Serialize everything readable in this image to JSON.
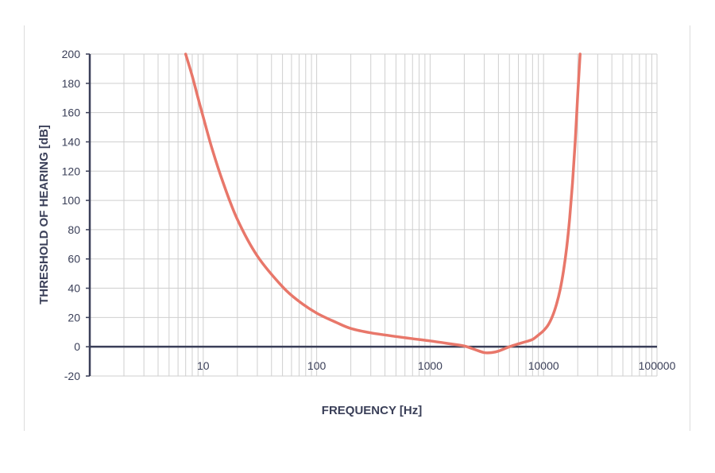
{
  "chart_data": {
    "type": "line",
    "xlabel": "FREQUENCY [Hz]",
    "ylabel": "THRESHOLD OF HEARING [dB]",
    "x_scale": "log",
    "xlim": [
      1,
      100000
    ],
    "ylim": [
      -20,
      200
    ],
    "x_ticks": [
      10,
      100,
      1000,
      10000,
      100000
    ],
    "x_tick_labels": [
      "10",
      "100",
      "1000",
      "10000",
      "100000"
    ],
    "y_ticks": [
      -20,
      0,
      20,
      40,
      60,
      80,
      100,
      120,
      140,
      160,
      180,
      200
    ],
    "y_tick_labels": [
      "-20",
      "0",
      "20",
      "40",
      "60",
      "80",
      "100",
      "120",
      "140",
      "160",
      "180",
      "200"
    ],
    "grid": true,
    "colors": {
      "curve": "#e8776a",
      "axis": "#3a3f58",
      "grid": "#cfcfcf"
    },
    "series": [
      {
        "x": [
          7,
          8,
          9,
          10,
          12,
          15,
          20,
          30,
          50,
          70,
          100,
          150,
          200,
          300,
          500,
          700,
          1000,
          1500,
          2000,
          2500,
          3000,
          3500,
          4000,
          5000,
          6000,
          7000,
          8000,
          9000,
          10000,
          11000,
          12000,
          13000,
          14000,
          15000,
          16000,
          17000,
          18000,
          19000,
          20000,
          21000
        ],
        "y": [
          200,
          185,
          170,
          157,
          135,
          112,
          87,
          62,
          41,
          31,
          23,
          16.5,
          12.5,
          9.5,
          7,
          5.5,
          4,
          2,
          0.5,
          -2,
          -4,
          -4,
          -3,
          0,
          2,
          3.5,
          5,
          8,
          11,
          15,
          21,
          29,
          39,
          52,
          68,
          88,
          112,
          140,
          172,
          200
        ]
      }
    ]
  }
}
